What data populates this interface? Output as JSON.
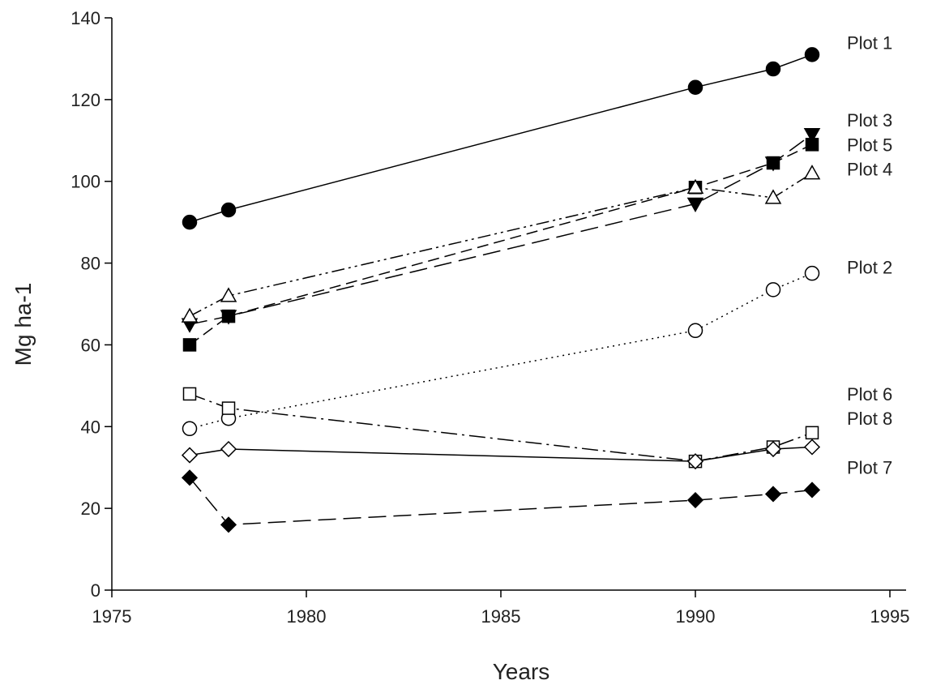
{
  "chart_data": {
    "type": "line",
    "xlabel": "Years",
    "ylabel": "Mg ha-1",
    "xlim": [
      1975,
      1996
    ],
    "ylim": [
      0,
      140
    ],
    "xticks": [
      1975,
      1980,
      1985,
      1990,
      1995
    ],
    "yticks": [
      0,
      20,
      40,
      60,
      80,
      100,
      120,
      140
    ],
    "grid": false,
    "legend": "labels at right end of each series",
    "series": [
      {
        "name": "Plot 1",
        "marker": "circle-filled",
        "dash": "solid",
        "x": [
          1977,
          1978,
          1990,
          1992,
          1993
        ],
        "y": [
          90,
          93,
          123,
          127.5,
          131
        ]
      },
      {
        "name": "Plot 3",
        "marker": "triangle-down-filled",
        "dash": "long-dash",
        "x": [
          1977,
          1978,
          1990,
          1992,
          1993
        ],
        "y": [
          65,
          67,
          94.5,
          104.5,
          111.5
        ]
      },
      {
        "name": "Plot 5",
        "marker": "square-filled",
        "dash": "medium-dash",
        "x": [
          1977,
          1978,
          1990,
          1992,
          1993
        ],
        "y": [
          60,
          67,
          98.5,
          104.5,
          109
        ]
      },
      {
        "name": "Plot 4",
        "marker": "triangle-up-open",
        "dash": "dash-dot-dot",
        "x": [
          1977,
          1978,
          1990,
          1992,
          1993
        ],
        "y": [
          67,
          72,
          98.5,
          96,
          102
        ]
      },
      {
        "name": "Plot 2",
        "marker": "circle-open",
        "dash": "dotted",
        "x": [
          1977,
          1978,
          1990,
          1992,
          1993
        ],
        "y": [
          39.5,
          42,
          63.5,
          73.5,
          77.5
        ]
      },
      {
        "name": "Plot 6",
        "marker": "square-open",
        "dash": "dash-dot",
        "x": [
          1977,
          1978,
          1990,
          1992,
          1993
        ],
        "y": [
          48,
          44.5,
          31.5,
          35,
          38.5
        ]
      },
      {
        "name": "Plot 8",
        "marker": "diamond-open",
        "dash": "solid",
        "x": [
          1977,
          1978,
          1990,
          1992,
          1993
        ],
        "y": [
          33,
          34.5,
          31.5,
          34.5,
          35
        ]
      },
      {
        "name": "Plot 7",
        "marker": "diamond-filled",
        "dash": "long-dash",
        "x": [
          1977,
          1978,
          1990,
          1992,
          1993
        ],
        "y": [
          27.5,
          16,
          22,
          23.5,
          24.5
        ]
      }
    ],
    "series_labels": [
      {
        "text": "Plot 1",
        "y": 134
      },
      {
        "text": "Plot 3",
        "y": 115
      },
      {
        "text": "Plot 5",
        "y": 109
      },
      {
        "text": "Plot 4",
        "y": 103
      },
      {
        "text": "Plot 2",
        "y": 79
      },
      {
        "text": "Plot 6",
        "y": 48
      },
      {
        "text": "Plot 8",
        "y": 42
      },
      {
        "text": "Plot 7",
        "y": 30
      }
    ]
  }
}
